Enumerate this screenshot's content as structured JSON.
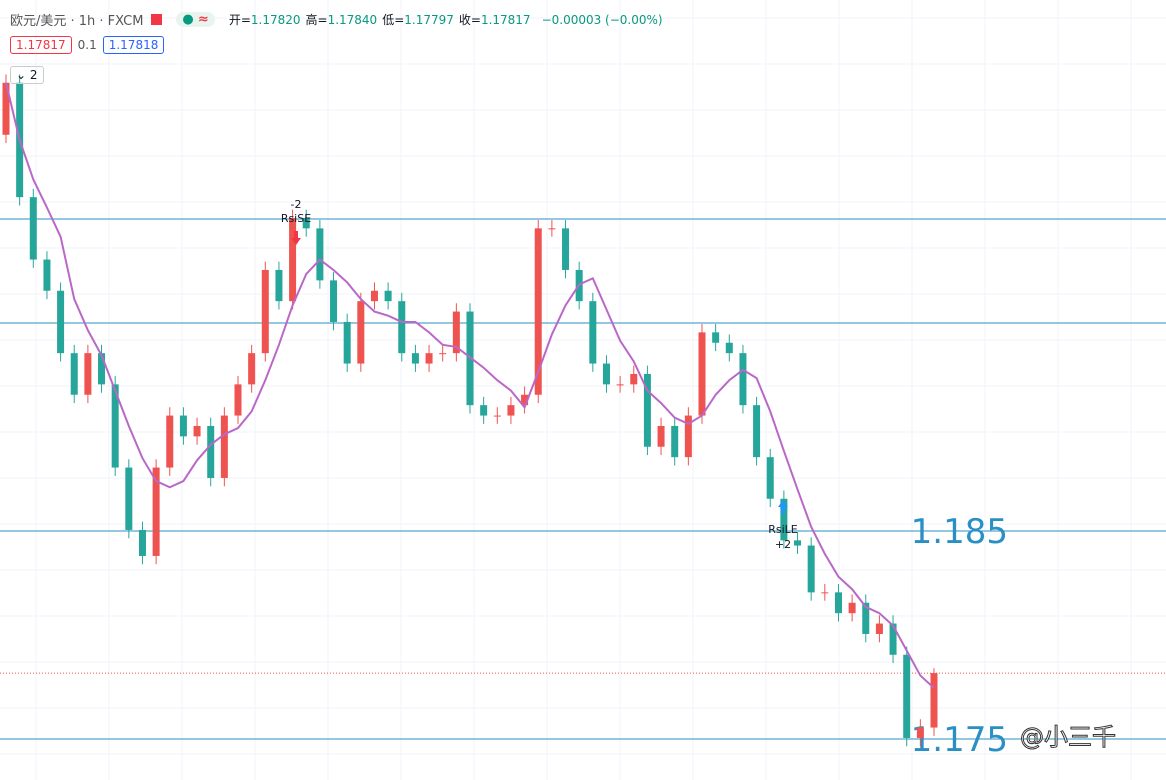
{
  "header": {
    "symbol": "欧元/美元 · 1h · FXCM",
    "ohlc": [
      {
        "label": "开=",
        "value": "1.17820"
      },
      {
        "label": "高=",
        "value": "1.17840"
      },
      {
        "label": "低=",
        "value": "1.17797"
      },
      {
        "label": "收=",
        "value": "1.17817"
      }
    ],
    "change": "−0.00003 (−0.00%)",
    "sell": "1.17817",
    "spread": "0.1",
    "buy": "1.17818",
    "indicator_count": "2"
  },
  "chart_data": {
    "type": "candlestick",
    "up_color": "#ef5350",
    "down_color": "#26a69a",
    "candles": [
      [
        1.20405,
        1.20695,
        1.20365,
        1.20655
      ],
      [
        1.20655,
        1.20695,
        1.20065,
        1.20105
      ],
      [
        1.20105,
        1.20145,
        1.19765,
        1.19805
      ],
      [
        1.19805,
        1.19845,
        1.19615,
        1.19655
      ],
      [
        1.19655,
        1.19695,
        1.19315,
        1.19355
      ],
      [
        1.19355,
        1.19395,
        1.19115,
        1.19155
      ],
      [
        1.19155,
        1.19395,
        1.19115,
        1.19355
      ],
      [
        1.19355,
        1.19395,
        1.19165,
        1.19205
      ],
      [
        1.19205,
        1.19245,
        1.18765,
        1.18805
      ],
      [
        1.18805,
        1.18845,
        1.18465,
        1.18505
      ],
      [
        1.18505,
        1.18545,
        1.1834,
        1.1838
      ],
      [
        1.1838,
        1.18845,
        1.1834,
        1.18805
      ],
      [
        1.18805,
        1.19095,
        1.18765,
        1.19055
      ],
      [
        1.19055,
        1.19095,
        1.18915,
        1.18955
      ],
      [
        1.18955,
        1.19045,
        1.18915,
        1.19005
      ],
      [
        1.19005,
        1.19045,
        1.18715,
        1.18755
      ],
      [
        1.18755,
        1.19095,
        1.18715,
        1.19055
      ],
      [
        1.19055,
        1.19245,
        1.19015,
        1.19205
      ],
      [
        1.19205,
        1.19395,
        1.19165,
        1.19355
      ],
      [
        1.19355,
        1.19795,
        1.19315,
        1.19755
      ],
      [
        1.19755,
        1.19795,
        1.19565,
        1.19605
      ],
      [
        1.19605,
        1.20045,
        1.19565,
        1.20005
      ],
      [
        1.20005,
        1.20045,
        1.19915,
        1.19955
      ],
      [
        1.19955,
        1.19995,
        1.19665,
        1.19705
      ],
      [
        1.19705,
        1.19745,
        1.19465,
        1.19505
      ],
      [
        1.19505,
        1.19545,
        1.19265,
        1.19305
      ],
      [
        1.19305,
        1.19645,
        1.19265,
        1.19605
      ],
      [
        1.19605,
        1.19695,
        1.19565,
        1.19655
      ],
      [
        1.19655,
        1.19695,
        1.19565,
        1.19605
      ],
      [
        1.19605,
        1.19645,
        1.19315,
        1.19355
      ],
      [
        1.19355,
        1.19395,
        1.19265,
        1.19305
      ],
      [
        1.19305,
        1.19395,
        1.19265,
        1.19355
      ],
      [
        1.19355,
        1.19395,
        1.19315,
        1.19355
      ],
      [
        1.19355,
        1.19595,
        1.19315,
        1.19555
      ],
      [
        1.19555,
        1.19595,
        1.19065,
        1.19105
      ],
      [
        1.19105,
        1.19145,
        1.19015,
        1.19055
      ],
      [
        1.19055,
        1.19095,
        1.19015,
        1.19055
      ],
      [
        1.19055,
        1.19145,
        1.19015,
        1.19105
      ],
      [
        1.19105,
        1.19195,
        1.19065,
        1.19155
      ],
      [
        1.19155,
        1.19995,
        1.19115,
        1.19955
      ],
      [
        1.19955,
        1.19995,
        1.19915,
        1.19955
      ],
      [
        1.19955,
        1.19995,
        1.19715,
        1.19755
      ],
      [
        1.19755,
        1.19795,
        1.19565,
        1.19605
      ],
      [
        1.19605,
        1.19645,
        1.19265,
        1.19305
      ],
      [
        1.19305,
        1.19345,
        1.19165,
        1.19205
      ],
      [
        1.19205,
        1.19245,
        1.19165,
        1.19205
      ],
      [
        1.19205,
        1.19295,
        1.19165,
        1.19255
      ],
      [
        1.19255,
        1.19295,
        1.18865,
        1.18905
      ],
      [
        1.18905,
        1.19045,
        1.18865,
        1.19005
      ],
      [
        1.19005,
        1.19045,
        1.18815,
        1.18855
      ],
      [
        1.18855,
        1.19095,
        1.18815,
        1.19055
      ],
      [
        1.19055,
        1.19495,
        1.19015,
        1.19455
      ],
      [
        1.19455,
        1.19495,
        1.19365,
        1.19405
      ],
      [
        1.19405,
        1.19445,
        1.19315,
        1.19355
      ],
      [
        1.19355,
        1.19395,
        1.19065,
        1.19105
      ],
      [
        1.19105,
        1.19145,
        1.18815,
        1.18855
      ],
      [
        1.18855,
        1.18895,
        1.18615,
        1.18655
      ],
      [
        1.18655,
        1.18695,
        1.18415,
        1.18455
      ],
      [
        1.18455,
        1.18495,
        1.1839,
        1.1843
      ],
      [
        1.1843,
        1.1847,
        1.18165,
        1.18205
      ],
      [
        1.18205,
        1.18245,
        1.18165,
        1.18205
      ],
      [
        1.18205,
        1.18245,
        1.18065,
        1.18105
      ],
      [
        1.18105,
        1.18195,
        1.18065,
        1.18155
      ],
      [
        1.18155,
        1.18195,
        1.17965,
        1.18005
      ],
      [
        1.18005,
        1.18095,
        1.17965,
        1.18055
      ],
      [
        1.18055,
        1.18095,
        1.17865,
        1.17905
      ],
      [
        1.17905,
        1.17945,
        1.17465,
        1.17505
      ],
      [
        1.17505,
        1.17595,
        1.17465,
        1.17555
      ],
      [
        1.17555,
        1.1784,
        1.17515,
        1.17817
      ]
    ],
    "ma": {
      "color": "#ba68c8",
      "values": [
        1.20655,
        1.2038,
        1.2019,
        1.20055,
        1.19915,
        1.19615,
        1.19465,
        1.19345,
        1.19175,
        1.19005,
        1.1885,
        1.1874,
        1.1871,
        1.1874,
        1.1884,
        1.18915,
        1.18965,
        1.18995,
        1.19075,
        1.19225,
        1.19395,
        1.19585,
        1.19735,
        1.19805,
        1.19755,
        1.19695,
        1.19615,
        1.19555,
        1.19535,
        1.19505,
        1.19505,
        1.19455,
        1.19395,
        1.19385,
        1.19335,
        1.19285,
        1.19225,
        1.19175,
        1.19095,
        1.19265,
        1.19445,
        1.19585,
        1.19685,
        1.19715,
        1.19565,
        1.19415,
        1.19315,
        1.19175,
        1.19115,
        1.19045,
        1.19015,
        1.19055,
        1.19155,
        1.19225,
        1.19275,
        1.19235,
        1.19075,
        1.18885,
        1.187,
        1.1852,
        1.1839,
        1.1828,
        1.1822,
        1.18135,
        1.18105,
        1.18045,
        1.17925,
        1.17805,
        1.17745
      ]
    },
    "levels": [
      1.2,
      1.195
    ],
    "labeled_levels": [
      1.185,
      1.175
    ],
    "level_color": "#2a8fc4",
    "signals": {
      "short_count": "-2",
      "short_name": "RsiSE",
      "long_name": "RsiLE",
      "long_count": "+2"
    }
  },
  "watermark": "@小三千"
}
